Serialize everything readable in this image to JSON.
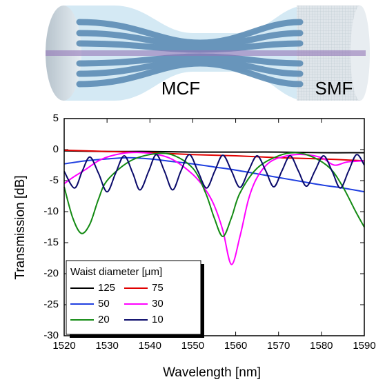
{
  "illustration": {
    "labels": [
      "MCF",
      "SMF"
    ]
  },
  "chart_data": {
    "type": "line",
    "xlabel": "Wavelength [nm]",
    "ylabel": "Transmission [dB]",
    "xlim": [
      1520,
      1590
    ],
    "xticks": [
      1520,
      1530,
      1540,
      1550,
      1560,
      1570,
      1580,
      1590
    ],
    "ylim": [
      -30,
      5
    ],
    "yticks": [
      -30,
      -25,
      -20,
      -15,
      -10,
      -5,
      0,
      5
    ],
    "legend_title": "Waist diameter [μm]",
    "legend": "lower left",
    "series": [
      {
        "name": "125",
        "color": "#000000",
        "x": [
          1520,
          1530,
          1540,
          1550,
          1560,
          1570,
          1580,
          1590
        ],
        "values": [
          -0.2,
          -0.3,
          -0.3,
          -0.4,
          -0.4,
          -0.4,
          -0.5,
          -0.5
        ]
      },
      {
        "name": "75",
        "color": "#e00000",
        "x": [
          1520,
          1530,
          1540,
          1550,
          1560,
          1570,
          1580,
          1590
        ],
        "values": [
          -0.1,
          -0.3,
          -0.5,
          -0.8,
          -1.0,
          -1.3,
          -1.5,
          -1.8
        ]
      },
      {
        "name": "50",
        "color": "#1f3fe0",
        "x": [
          1520,
          1525,
          1530,
          1535,
          1540,
          1545,
          1550,
          1555,
          1560,
          1565,
          1570,
          1575,
          1580,
          1585,
          1590
        ],
        "values": [
          -2.3,
          -1.8,
          -1.5,
          -1.3,
          -1.5,
          -1.9,
          -2.3,
          -2.8,
          -3.3,
          -3.9,
          -4.5,
          -5.1,
          -5.7,
          -6.2,
          -6.8
        ]
      },
      {
        "name": "30",
        "color": "#ff00ff",
        "x": [
          1520,
          1522,
          1525,
          1528,
          1531,
          1535,
          1540,
          1545,
          1550,
          1553,
          1555,
          1557,
          1559,
          1561,
          1563,
          1565,
          1568,
          1572,
          1576,
          1580,
          1583,
          1586,
          1590
        ],
        "values": [
          -5.5,
          -4.5,
          -3.2,
          -1.8,
          -1,
          -0.5,
          -0.6,
          -1.5,
          -4,
          -6.5,
          -9,
          -13,
          -18.5,
          -14,
          -8,
          -4.5,
          -2,
          -1,
          -0.8,
          -1.3,
          -2.5,
          -2,
          -1.8
        ]
      },
      {
        "name": "20",
        "color": "#138a13",
        "x": [
          1520,
          1522,
          1524,
          1526,
          1528,
          1530,
          1535,
          1540,
          1545,
          1550,
          1553,
          1555,
          1557,
          1559,
          1561,
          1565,
          1570,
          1574,
          1578,
          1582,
          1585,
          1588,
          1590
        ],
        "values": [
          -6,
          -11,
          -13.5,
          -12,
          -8,
          -5,
          -2,
          -0.8,
          -0.8,
          -3,
          -7,
          -11,
          -14,
          -11,
          -7,
          -3,
          -1,
          -0.5,
          -1.2,
          -3,
          -6,
          -10,
          -12.5
        ]
      },
      {
        "name": "10",
        "color": "#0a0a6a",
        "x": [
          1520,
          1522.4,
          1524.2,
          1526,
          1528,
          1530,
          1532,
          1534,
          1536,
          1537.7,
          1539.7,
          1541.5,
          1543.4,
          1545.3,
          1547.2,
          1549.2,
          1551.2,
          1553.2,
          1555.1,
          1557,
          1559,
          1561,
          1563,
          1565,
          1567,
          1568.9,
          1570.8,
          1572.7,
          1574.6,
          1576.5,
          1578.5,
          1580.5,
          1582.5,
          1584.4,
          1586.3,
          1588.2,
          1590
        ],
        "values": [
          -3.5,
          -6.2,
          -3.5,
          -1.2,
          -3.8,
          -6.8,
          -3.8,
          -1,
          -3.8,
          -6.5,
          -3.5,
          -0.8,
          -3.5,
          -6.5,
          -3.5,
          -0.8,
          -3.5,
          -6.2,
          -3.5,
          -0.9,
          -3.4,
          -6.1,
          -3.4,
          -1.0,
          -3.4,
          -6.0,
          -3.4,
          -1.0,
          -3.4,
          -5.9,
          -3.4,
          -1.0,
          -3.5,
          -6.2,
          -3.5,
          -0.8,
          -2.5
        ]
      }
    ]
  }
}
